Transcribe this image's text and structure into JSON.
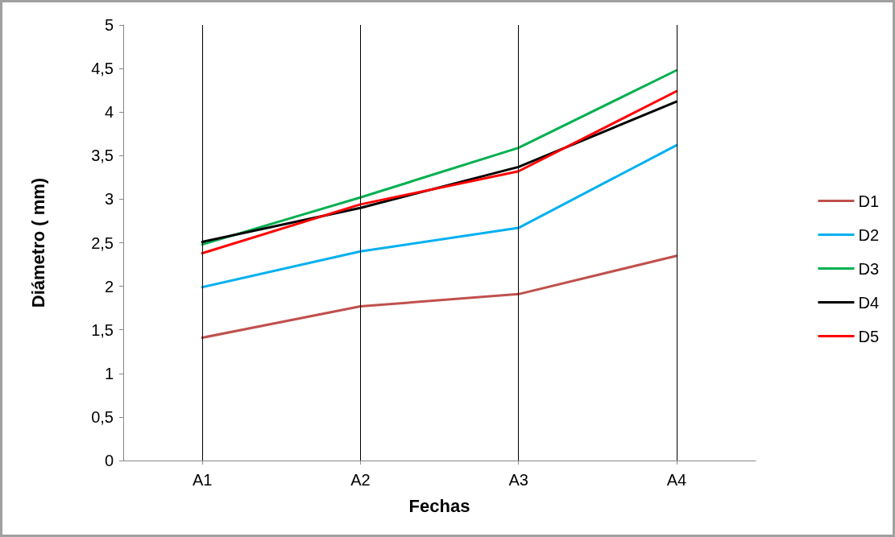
{
  "chart_data": {
    "type": "line",
    "xlabel": "Fechas",
    "ylabel": "Diámetro ( mm)",
    "categories": [
      "A1",
      "A2",
      "A3",
      "A4"
    ],
    "series": [
      {
        "name": "D1",
        "color": "#c0504d",
        "values": [
          1.41,
          1.77,
          1.91,
          2.35
        ]
      },
      {
        "name": "D2",
        "color": "#00b0f0",
        "values": [
          1.99,
          2.4,
          2.67,
          3.62
        ]
      },
      {
        "name": "D3",
        "color": "#00b050",
        "values": [
          2.48,
          3.02,
          3.59,
          4.48
        ]
      },
      {
        "name": "D4",
        "color": "#000000",
        "values": [
          2.51,
          2.9,
          3.37,
          4.12
        ]
      },
      {
        "name": "D5",
        "color": "#ff0000",
        "values": [
          2.38,
          2.94,
          3.32,
          4.24
        ]
      }
    ],
    "ylim": [
      0,
      5
    ],
    "yticks": [
      0,
      {
        "value": 0.5,
        "label": "0,5"
      },
      1,
      {
        "value": 1.5,
        "label": "1,5"
      },
      2,
      {
        "value": 2.5,
        "label": "2,5"
      },
      3,
      {
        "value": 3.5,
        "label": "3,5"
      },
      4,
      {
        "value": 4.5,
        "label": "4,5"
      },
      5
    ],
    "grid": "x",
    "legend": "right",
    "marker": "none",
    "line_style": "solid"
  }
}
